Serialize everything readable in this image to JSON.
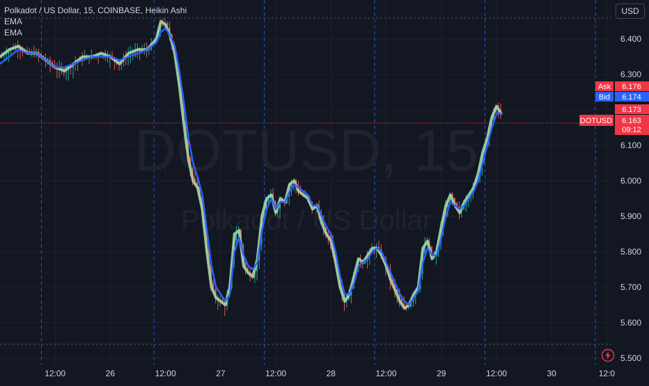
{
  "legend": {
    "symbol_line": "Polkadot / US Dollar, 15, COINBASE, Heikin Ashi",
    "indicator_1": "EMA",
    "indicator_2": "EMA"
  },
  "currency_button": "USD",
  "watermark": {
    "symbol": "DOTUSD, 15",
    "description": "Polkadot / US Dollar"
  },
  "colors": {
    "background": "#131722",
    "up": "#26a69a",
    "down": "#ef5350",
    "ema_fast": "#a5d6a7",
    "ema_slow": "#2962ff",
    "ask": "#f23645",
    "bid": "#2962ff",
    "session_line": "#2962ff"
  },
  "price_tags": {
    "ask_label": "Ask",
    "ask_value": "6.176",
    "bid_label": "Bid",
    "bid_value": "6.174",
    "last_value": "6.173",
    "symbol_label": "DOTUSD",
    "current_value": "6.163",
    "countdown": "09:12"
  },
  "icons": [
    "lightning-icon"
  ],
  "chart_data": {
    "type": "candlestick",
    "style": "Heikin Ashi",
    "title": "Polkadot / US Dollar, 15, COINBASE, Heikin Ashi",
    "y_axis": {
      "ticks": [
        "6.400",
        "6.300",
        "6.200",
        "6.100",
        "6.000",
        "5.900",
        "5.800",
        "5.700",
        "5.600",
        "5.500"
      ],
      "tick_values": [
        6.4,
        6.3,
        6.2,
        6.1,
        6.0,
        5.9,
        5.8,
        5.7,
        5.6,
        5.5
      ],
      "range": [
        5.48,
        6.51
      ],
      "side": "right"
    },
    "x_axis": {
      "ticks": [
        "12:00",
        "26",
        "12:00",
        "27",
        "12:00",
        "28",
        "12:00",
        "29",
        "12:00",
        "30",
        "12:0"
      ],
      "tick_hours": [
        12,
        24,
        36,
        48,
        60,
        72,
        84,
        96,
        108,
        120,
        132
      ],
      "range_hours": [
        0,
        133
      ]
    },
    "session_breaks_hours": [
      9,
      33.5,
      57.5,
      81.5,
      105.5,
      129.5
    ],
    "series": [
      {
        "name": "EMA",
        "color": "#a5d6a7",
        "points": [
          [
            0,
            6.35
          ],
          [
            2,
            6.37
          ],
          [
            4,
            6.38
          ],
          [
            6,
            6.36
          ],
          [
            8,
            6.36
          ],
          [
            10,
            6.34
          ],
          [
            12,
            6.32
          ],
          [
            14,
            6.31
          ],
          [
            16,
            6.33
          ],
          [
            18,
            6.35
          ],
          [
            20,
            6.35
          ],
          [
            22,
            6.36
          ],
          [
            24,
            6.35
          ],
          [
            26,
            6.33
          ],
          [
            28,
            6.36
          ],
          [
            30,
            6.37
          ],
          [
            32,
            6.37
          ],
          [
            34,
            6.4
          ],
          [
            35,
            6.45
          ],
          [
            36,
            6.44
          ],
          [
            37,
            6.41
          ],
          [
            38,
            6.36
          ],
          [
            39,
            6.27
          ],
          [
            40,
            6.16
          ],
          [
            41,
            6.06
          ],
          [
            42,
            6.0
          ],
          [
            43,
            5.98
          ],
          [
            44,
            5.92
          ],
          [
            45,
            5.8
          ],
          [
            46,
            5.7
          ],
          [
            47,
            5.67
          ],
          [
            48,
            5.66
          ],
          [
            49,
            5.65
          ],
          [
            50,
            5.7
          ],
          [
            51,
            5.85
          ],
          [
            52,
            5.86
          ],
          [
            53,
            5.76
          ],
          [
            54,
            5.74
          ],
          [
            55,
            5.73
          ],
          [
            56,
            5.78
          ],
          [
            57,
            5.9
          ],
          [
            58,
            5.95
          ],
          [
            59,
            5.96
          ],
          [
            60,
            5.91
          ],
          [
            61,
            5.95
          ],
          [
            62,
            5.94
          ],
          [
            63,
            5.99
          ],
          [
            64,
            6.0
          ],
          [
            65,
            5.97
          ],
          [
            66,
            5.96
          ],
          [
            67,
            5.95
          ],
          [
            68,
            5.92
          ],
          [
            69,
            5.93
          ],
          [
            70,
            5.88
          ],
          [
            71,
            5.85
          ],
          [
            72,
            5.83
          ],
          [
            73,
            5.77
          ],
          [
            74,
            5.7
          ],
          [
            75,
            5.66
          ],
          [
            76,
            5.68
          ],
          [
            77,
            5.73
          ],
          [
            78,
            5.78
          ],
          [
            79,
            5.77
          ],
          [
            80,
            5.79
          ],
          [
            81,
            5.81
          ],
          [
            82,
            5.81
          ],
          [
            83,
            5.79
          ],
          [
            84,
            5.76
          ],
          [
            85,
            5.72
          ],
          [
            86,
            5.69
          ],
          [
            87,
            5.66
          ],
          [
            88,
            5.64
          ],
          [
            89,
            5.65
          ],
          [
            90,
            5.68
          ],
          [
            91,
            5.7
          ],
          [
            92,
            5.81
          ],
          [
            93,
            5.83
          ],
          [
            94,
            5.78
          ],
          [
            95,
            5.8
          ],
          [
            96,
            5.87
          ],
          [
            97,
            5.93
          ],
          [
            98,
            5.96
          ],
          [
            99,
            5.93
          ],
          [
            100,
            5.91
          ],
          [
            101,
            5.94
          ],
          [
            102,
            5.96
          ],
          [
            103,
            5.98
          ],
          [
            104,
            6.02
          ],
          [
            105,
            6.08
          ],
          [
            106,
            6.12
          ],
          [
            107,
            6.18
          ],
          [
            108,
            6.21
          ],
          [
            109,
            6.19
          ]
        ]
      },
      {
        "name": "EMA",
        "color": "#2962ff",
        "points": [
          [
            0,
            6.33
          ],
          [
            2,
            6.35
          ],
          [
            4,
            6.37
          ],
          [
            6,
            6.36
          ],
          [
            8,
            6.36
          ],
          [
            10,
            6.34
          ],
          [
            12,
            6.32
          ],
          [
            14,
            6.32
          ],
          [
            16,
            6.33
          ],
          [
            18,
            6.34
          ],
          [
            20,
            6.35
          ],
          [
            22,
            6.35
          ],
          [
            24,
            6.35
          ],
          [
            26,
            6.34
          ],
          [
            28,
            6.35
          ],
          [
            30,
            6.36
          ],
          [
            32,
            6.37
          ],
          [
            34,
            6.39
          ],
          [
            35,
            6.42
          ],
          [
            36,
            6.43
          ],
          [
            37,
            6.41
          ],
          [
            38,
            6.38
          ],
          [
            39,
            6.31
          ],
          [
            40,
            6.22
          ],
          [
            41,
            6.12
          ],
          [
            42,
            6.05
          ],
          [
            43,
            6.01
          ],
          [
            44,
            5.96
          ],
          [
            45,
            5.86
          ],
          [
            46,
            5.76
          ],
          [
            47,
            5.7
          ],
          [
            48,
            5.68
          ],
          [
            49,
            5.66
          ],
          [
            50,
            5.68
          ],
          [
            51,
            5.8
          ],
          [
            52,
            5.84
          ],
          [
            53,
            5.79
          ],
          [
            54,
            5.76
          ],
          [
            55,
            5.75
          ],
          [
            56,
            5.77
          ],
          [
            57,
            5.86
          ],
          [
            58,
            5.92
          ],
          [
            59,
            5.95
          ],
          [
            60,
            5.92
          ],
          [
            61,
            5.94
          ],
          [
            62,
            5.94
          ],
          [
            63,
            5.97
          ],
          [
            64,
            5.99
          ],
          [
            65,
            5.98
          ],
          [
            66,
            5.97
          ],
          [
            67,
            5.96
          ],
          [
            68,
            5.93
          ],
          [
            69,
            5.93
          ],
          [
            70,
            5.9
          ],
          [
            71,
            5.87
          ],
          [
            72,
            5.85
          ],
          [
            73,
            5.8
          ],
          [
            74,
            5.73
          ],
          [
            75,
            5.68
          ],
          [
            76,
            5.68
          ],
          [
            77,
            5.71
          ],
          [
            78,
            5.76
          ],
          [
            79,
            5.77
          ],
          [
            80,
            5.78
          ],
          [
            81,
            5.8
          ],
          [
            82,
            5.81
          ],
          [
            83,
            5.8
          ],
          [
            84,
            5.77
          ],
          [
            85,
            5.74
          ],
          [
            86,
            5.71
          ],
          [
            87,
            5.68
          ],
          [
            88,
            5.66
          ],
          [
            89,
            5.65
          ],
          [
            90,
            5.67
          ],
          [
            91,
            5.69
          ],
          [
            92,
            5.77
          ],
          [
            93,
            5.81
          ],
          [
            94,
            5.79
          ],
          [
            95,
            5.79
          ],
          [
            96,
            5.84
          ],
          [
            97,
            5.9
          ],
          [
            98,
            5.94
          ],
          [
            99,
            5.93
          ],
          [
            100,
            5.92
          ],
          [
            101,
            5.93
          ],
          [
            102,
            5.95
          ],
          [
            103,
            5.97
          ],
          [
            104,
            6.0
          ],
          [
            105,
            6.05
          ],
          [
            106,
            6.1
          ],
          [
            107,
            6.15
          ],
          [
            108,
            6.19
          ],
          [
            109,
            6.19
          ]
        ]
      }
    ],
    "price_line": 6.163
  }
}
